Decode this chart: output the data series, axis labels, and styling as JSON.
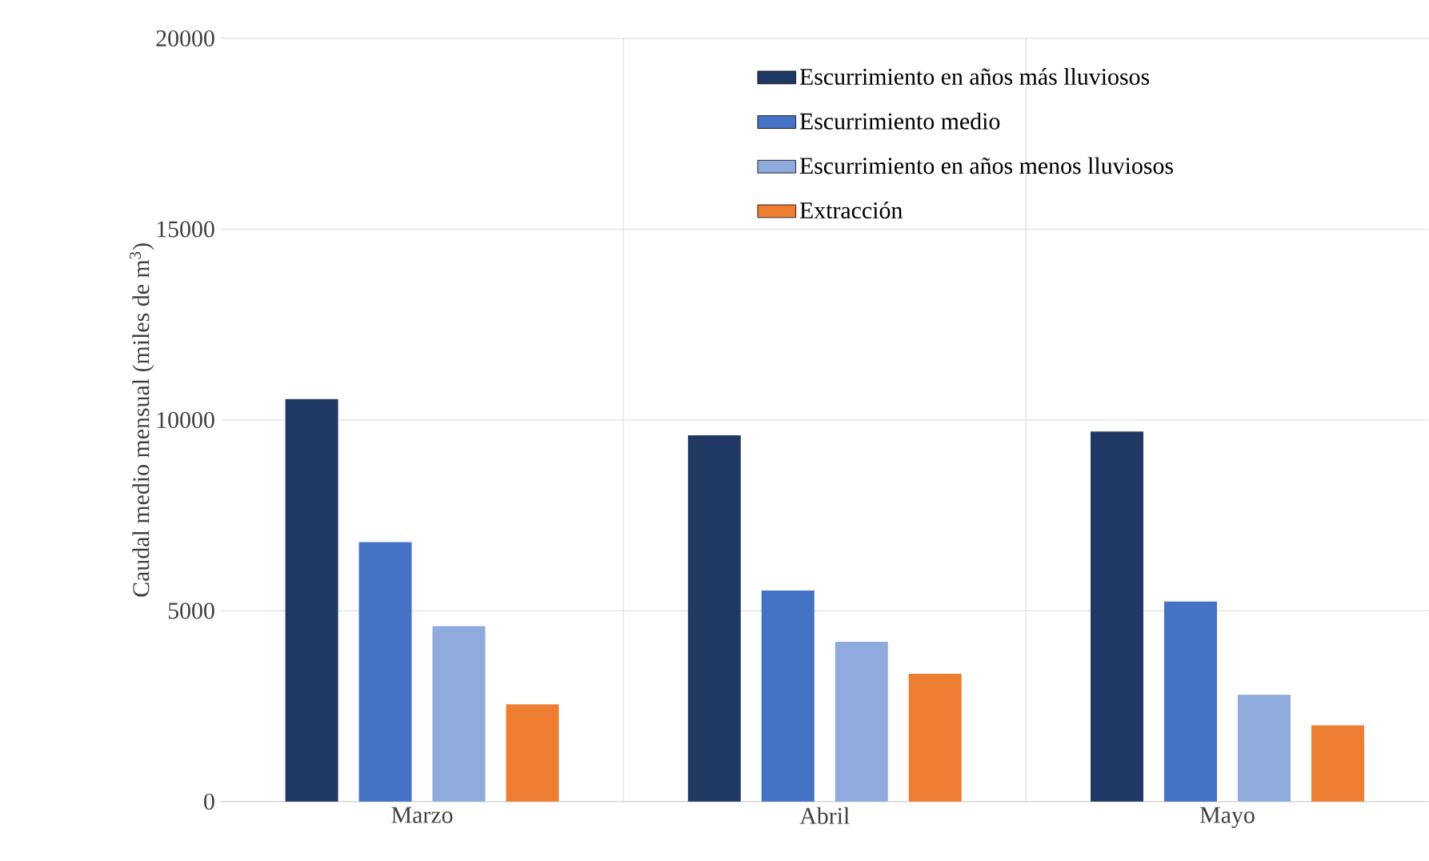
{
  "chart_data": {
    "type": "bar",
    "ylabel": "Caudal medio mensual (miles de m$^{3}$)",
    "categories": [
      "Marzo",
      "Abril",
      "Mayo"
    ],
    "series": [
      {
        "name": "Escurrimiento en años más lluviosos",
        "color": "#203864",
        "values": [
          10550,
          9600,
          9700
        ]
      },
      {
        "name": "Escurrimiento medio",
        "color": "#4472c4",
        "values": [
          6800,
          5530,
          5240
        ]
      },
      {
        "name": "Escurrimiento en años menos lluviosos",
        "color": "#8faadc",
        "values": [
          4600,
          4190,
          2800
        ]
      },
      {
        "name": "Extracción",
        "color": "#ed7d31",
        "values": [
          2550,
          3350,
          2000
        ]
      }
    ],
    "ylim": [
      0,
      20000
    ],
    "yticks": [
      0,
      5000,
      10000,
      15000,
      20000
    ],
    "grid": true,
    "legend": "top right"
  }
}
